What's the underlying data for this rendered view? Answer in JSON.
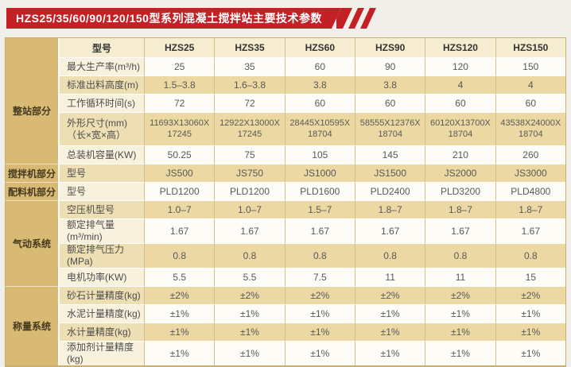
{
  "banner": {
    "title": "HZS25/35/60/90/120/150型系列混凝土搅拌站主要技术参数"
  },
  "colors": {
    "banner_red": "#c42127",
    "group_column": "#d8ba74",
    "header_cream": "#f6edd0",
    "band_tan": "#ebd8a2",
    "band_light": "#fdfcf6",
    "page_background": "#f1efea"
  },
  "table": {
    "header": {
      "model_label": "型号",
      "models": [
        "HZS25",
        "HZS35",
        "HZS60",
        "HZS90",
        "HZS120",
        "HZS150"
      ]
    },
    "groups": [
      {
        "label": "整站部分",
        "rows": [
          {
            "label": "最大生产率(m³/h)",
            "values": [
              "25",
              "35",
              "60",
              "90",
              "120",
              "150"
            ]
          },
          {
            "label": "标准出料高度(m)",
            "values": [
              "1.5–3.8",
              "1.6–3.8",
              "3.8",
              "3.8",
              "4",
              "4"
            ]
          },
          {
            "label": "工作循环时间(s)",
            "values": [
              "72",
              "72",
              "60",
              "60",
              "60",
              "60"
            ]
          },
          {
            "label": "外形尺寸(mm)\n（长×宽×高）",
            "tall": true,
            "values": [
              "11693X13060X\n17245",
              "12922X13000X\n17245",
              "28445X10595X\n18704",
              "58555X12376X\n18704",
              "60120X13700X\n18704",
              "43538X24000X\n18704"
            ]
          },
          {
            "label": "总装机容量(KW)",
            "values": [
              "50.25",
              "75",
              "105",
              "145",
              "210",
              "260"
            ]
          }
        ]
      },
      {
        "label": "搅拌机部分",
        "rows": [
          {
            "label": "型号",
            "values": [
              "JS500",
              "JS750",
              "JS1000",
              "JS1500",
              "JS2000",
              "JS3000"
            ]
          }
        ]
      },
      {
        "label": "配料机部分",
        "rows": [
          {
            "label": "型号",
            "values": [
              "PLD1200",
              "PLD1200",
              "PLD1600",
              "PLD2400",
              "PLD3200",
              "PLD4800"
            ]
          }
        ]
      },
      {
        "label": "气动系统",
        "rows": [
          {
            "label": "空压机型号",
            "values": [
              "1.0–7",
              "1.0–7",
              "1.5–7",
              "1.8–7",
              "1.8–7",
              "1.8–7"
            ]
          },
          {
            "label": "额定排气量(m³/min)",
            "values": [
              "1.67",
              "1.67",
              "1.67",
              "1.67",
              "1.67",
              "1.67"
            ]
          },
          {
            "label": "额定排气压力(MPa)",
            "values": [
              "0.8",
              "0.8",
              "0.8",
              "0.8",
              "0.8",
              "0.8"
            ]
          },
          {
            "label": "电机功率(KW)",
            "values": [
              "5.5",
              "5.5",
              "7.5",
              "11",
              "11",
              "15"
            ]
          }
        ]
      },
      {
        "label": "称量系统",
        "rows": [
          {
            "label": "砂石计量精度(kg)",
            "values": [
              "±2%",
              "±2%",
              "±2%",
              "±2%",
              "±2%",
              "±2%"
            ]
          },
          {
            "label": "水泥计量精度(kg)",
            "values": [
              "±1%",
              "±1%",
              "±1%",
              "±1%",
              "±1%",
              "±1%"
            ]
          },
          {
            "label": "水计量精度(kg)",
            "values": [
              "±1%",
              "±1%",
              "±1%",
              "±1%",
              "±1%",
              "±1%"
            ]
          },
          {
            "label": "添加剂计量精度(kg)",
            "values": [
              "±1%",
              "±1%",
              "±1%",
              "±1%",
              "±1%",
              "±1%"
            ]
          }
        ]
      }
    ]
  }
}
